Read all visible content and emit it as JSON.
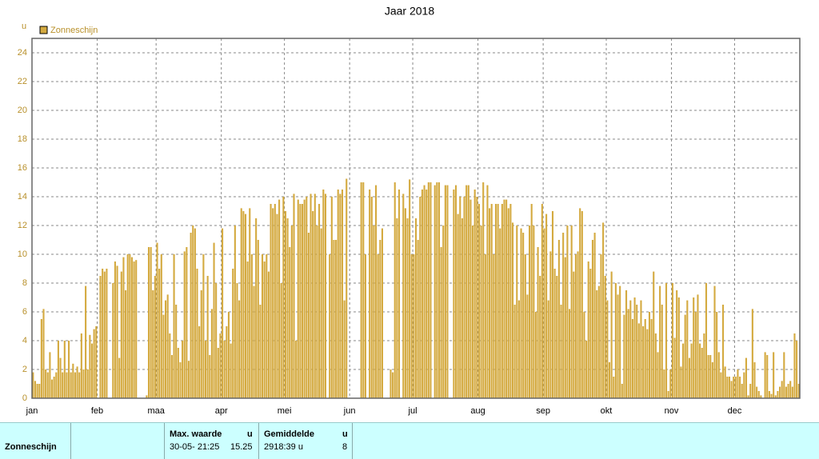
{
  "chart_data": {
    "type": "bar",
    "title": "Jaar 2018",
    "y_unit": "u",
    "color": "#d4aa40",
    "grid": true,
    "ylim": [
      0,
      25
    ],
    "yticks": [
      0,
      2,
      4,
      6,
      8,
      10,
      12,
      14,
      16,
      18,
      20,
      22,
      24
    ],
    "series": [
      {
        "name": "Zonneschijn",
        "color": "#d4aa40",
        "values": [
          1.8,
          1.2,
          1,
          1,
          5.5,
          6.2,
          2,
          1.8,
          3.2,
          1.3,
          1.5,
          1.8,
          4,
          2.8,
          1.8,
          4,
          1.8,
          4,
          1.8,
          2.4,
          1.8,
          2.2,
          1.8,
          4.5,
          2,
          7.8,
          2,
          4.4,
          3.8,
          4.8,
          5,
          0,
          8.5,
          9,
          8.8,
          9,
          0,
          0,
          8,
          9.5,
          9.2,
          2.8,
          8.8,
          9.8,
          7.5,
          10,
          10,
          9.8,
          9.5,
          9.6,
          0,
          0,
          0,
          0,
          0.2,
          10.5,
          10.5,
          7.5,
          8.5,
          10.8,
          9,
          10,
          5.8,
          6.8,
          7.2,
          4.5,
          3,
          10,
          6.5,
          3.5,
          2.5,
          4,
          10.2,
          10.5,
          2.6,
          11.5,
          12,
          11.8,
          9,
          5,
          7.5,
          10,
          4,
          8.5,
          3,
          6.2,
          10.8,
          8,
          3.5,
          4.5,
          11.8,
          4,
          5,
          6,
          3.8,
          9,
          12,
          8,
          6.8,
          13.2,
          13,
          12.8,
          9.5,
          13.2,
          10,
          7.8,
          12.5,
          11,
          6.5,
          10,
          9.5,
          10,
          8.8,
          13.5,
          13.2,
          13.5,
          12.8,
          13.8,
          8,
          14,
          13,
          12.5,
          10.5,
          12,
          14.2,
          4,
          13.8,
          13.5,
          13.5,
          13.8,
          14,
          11.5,
          14.2,
          13,
          14.2,
          12,
          13.5,
          11.8,
          14.5,
          14.2,
          0,
          10,
          14,
          11,
          11,
          14.5,
          14.2,
          14.5,
          6.8,
          15.25,
          0,
          0,
          0,
          0,
          0,
          0,
          15,
          15,
          10,
          0,
          14.5,
          14,
          12,
          14.8,
          10,
          11,
          11.8,
          0,
          0,
          0,
          2,
          1.8,
          15,
          12.5,
          14.5,
          0,
          14.2,
          13.2,
          12.5,
          15.2,
          10,
          10,
          12.5,
          11,
          14,
          14.5,
          14.8,
          14.5,
          15,
          15,
          0,
          14.8,
          15,
          15,
          10.5,
          12,
          14.8,
          14.8,
          0,
          0,
          14.5,
          14.8,
          12.8,
          14,
          12.5,
          14,
          14.8,
          14.8,
          13.8,
          12,
          14.5,
          14,
          13.5,
          12,
          15,
          10,
          14.8,
          13.2,
          13.5,
          10,
          13.5,
          13.5,
          11.8,
          13.5,
          13.8,
          13.8,
          13.2,
          13.5,
          12.2,
          6.5,
          12,
          6.8,
          11.8,
          11.5,
          10,
          7.2,
          12,
          13.5,
          12,
          6,
          10.5,
          8.5,
          13.5,
          11.8,
          12.8,
          6.8,
          10.2,
          13,
          9,
          8.5,
          11,
          6.5,
          11.5,
          9.8,
          12,
          6.2,
          12,
          8.8,
          10,
          10.2,
          13.2,
          13,
          6,
          4,
          9.5,
          9,
          11,
          11.5,
          7.5,
          7.8,
          10,
          12.2,
          8.5,
          6.8,
          2.5,
          8.8,
          1.5,
          8,
          7.2,
          7.8,
          1,
          5.8,
          7.5,
          6.2,
          6.8,
          5.5,
          7,
          6.5,
          5.2,
          6.8,
          5,
          5.5,
          4.8,
          6,
          5.5,
          8.8,
          4.5,
          3.2,
          7.8,
          6.5,
          2,
          8,
          0.5,
          2,
          8,
          4.2,
          7.5,
          7,
          2.2,
          3.8,
          5.8,
          6.8,
          2.8,
          3.8,
          7,
          6,
          7.2,
          3.8,
          3.5,
          4.5,
          8,
          3,
          3,
          2.5,
          7.8,
          6,
          3.2,
          1.8,
          6.5,
          2.2,
          1.5,
          1.5,
          1.2,
          1.5,
          1.5,
          2,
          1.5,
          1,
          1.8,
          2.8,
          0.2,
          1,
          6.2,
          2.5,
          0.8,
          0.5,
          0.2,
          0,
          3.2,
          3,
          0.5,
          0.3,
          3.2,
          0.2,
          0.5,
          0.8,
          1.2,
          3.2,
          0.8,
          1,
          1.2,
          0.8,
          4.5,
          4,
          1
        ]
      }
    ],
    "categories": [
      "jan",
      null,
      null,
      null,
      null,
      null,
      null,
      null,
      null,
      null,
      null,
      null,
      null,
      null,
      null,
      null,
      null,
      null,
      null,
      null,
      null,
      null,
      null,
      null,
      null,
      null,
      null,
      null,
      null,
      null,
      null,
      "feb",
      null,
      null,
      null,
      null,
      null,
      null,
      null,
      null,
      null,
      null,
      null,
      null,
      null,
      null,
      null,
      null,
      null,
      null,
      null,
      null,
      null,
      null,
      null,
      null,
      null,
      null,
      null,
      "maa",
      null,
      null,
      null,
      null,
      null,
      null,
      null,
      null,
      null,
      null,
      null,
      null,
      null,
      null,
      null,
      null,
      null,
      null,
      null,
      null,
      null,
      null,
      null,
      null,
      null,
      null,
      null,
      null,
      null,
      null,
      "apr",
      null,
      null,
      null,
      null,
      null,
      null,
      null,
      null,
      null,
      null,
      null,
      null,
      null,
      null,
      null,
      null,
      null,
      null,
      null,
      null,
      null,
      null,
      null,
      null,
      null,
      null,
      null,
      null,
      null,
      "mei",
      null,
      null,
      null,
      null,
      null,
      null,
      null,
      null,
      null,
      null,
      null,
      null,
      null,
      null,
      null,
      null,
      null,
      null,
      null,
      null,
      null,
      null,
      null,
      null,
      null,
      null,
      null,
      null,
      null,
      null,
      "jun",
      null,
      null,
      null,
      null,
      null,
      null,
      null,
      null,
      null,
      null,
      null,
      null,
      null,
      null,
      null,
      null,
      null,
      null,
      null,
      null,
      null,
      null,
      null,
      null,
      null,
      null,
      null,
      null,
      null,
      "jul",
      null,
      null,
      null,
      null,
      null,
      null,
      null,
      null,
      null,
      null,
      null,
      null,
      null,
      null,
      null,
      null,
      null,
      null,
      null,
      null,
      null,
      null,
      null,
      null,
      null,
      null,
      null,
      null,
      null,
      null,
      "aug",
      null,
      null,
      null,
      null,
      null,
      null,
      null,
      null,
      null,
      null,
      null,
      null,
      null,
      null,
      null,
      null,
      null,
      null,
      null,
      null,
      null,
      null,
      null,
      null,
      null,
      null,
      null,
      null,
      null,
      null,
      "sep",
      null,
      null,
      null,
      null,
      null,
      null,
      null,
      null,
      null,
      null,
      null,
      null,
      null,
      null,
      null,
      null,
      null,
      null,
      null,
      null,
      null,
      null,
      null,
      null,
      null,
      null,
      null,
      null,
      null,
      "okt",
      null,
      null,
      null,
      null,
      null,
      null,
      null,
      null,
      null,
      null,
      null,
      null,
      null,
      null,
      null,
      null,
      null,
      null,
      null,
      null,
      null,
      null,
      null,
      null,
      null,
      null,
      null,
      null,
      null,
      null,
      "nov",
      null,
      null,
      null,
      null,
      null,
      null,
      null,
      null,
      null,
      null,
      null,
      null,
      null,
      null,
      null,
      null,
      null,
      null,
      null,
      null,
      null,
      null,
      null,
      null,
      null,
      null,
      null,
      null,
      null,
      "dec",
      null,
      null,
      null,
      null,
      null,
      null,
      null,
      null,
      null,
      null,
      null,
      null,
      null,
      null,
      null,
      null,
      null,
      null,
      null,
      null,
      null,
      null,
      null,
      null,
      null,
      null,
      null,
      null,
      null,
      null
    ]
  },
  "stats": {
    "row_label": "Zonneschijn",
    "max": {
      "header": "Max. waarde",
      "unit": "u",
      "date": "30-05- 21:25",
      "value": "15.25"
    },
    "avg": {
      "header": "Gemiddelde",
      "unit": "u",
      "total": "2918:39 u",
      "value": "8"
    }
  }
}
